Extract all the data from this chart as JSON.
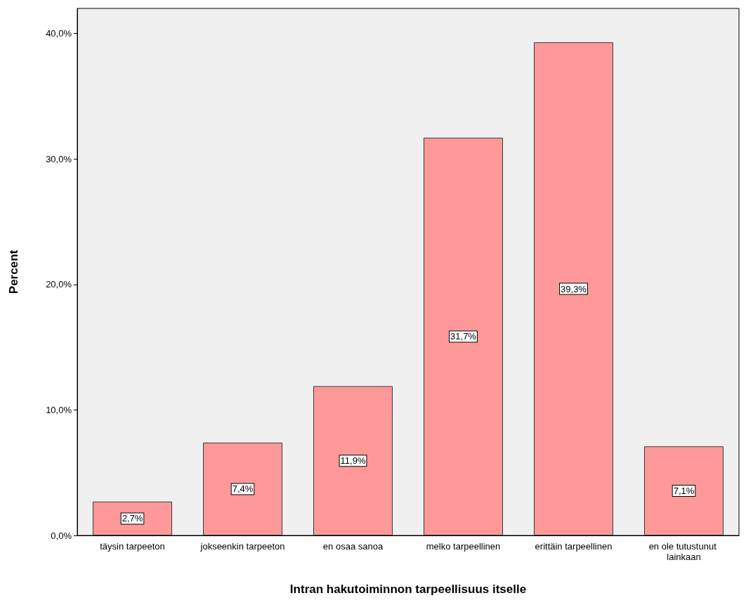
{
  "chart_data": {
    "type": "bar",
    "xlabel": "Intran hakutoiminnon tarpeellisuus itselle",
    "ylabel": "Percent",
    "categories": [
      "täysin tarpeeton",
      "jokseenkin tarpeeton",
      "en osaa sanoa",
      "melko tarpeellinen",
      "erittäin tarpeellinen",
      "en ole tutustunut lainkaan"
    ],
    "values": [
      2.7,
      7.4,
      11.9,
      31.7,
      39.3,
      7.1
    ],
    "value_labels": [
      "2,7%",
      "7,4%",
      "11,9%",
      "31,7%",
      "39,3%",
      "7,1%"
    ],
    "color": "#ff9999",
    "ylim": [
      0,
      42
    ],
    "yticks": [
      {
        "value": 0,
        "label": "0,0%"
      },
      {
        "value": 10,
        "label": "10,0%"
      },
      {
        "value": 20,
        "label": "20,0%"
      },
      {
        "value": 30,
        "label": "30,0%"
      },
      {
        "value": 40,
        "label": "40,0%"
      }
    ],
    "grid": false
  }
}
